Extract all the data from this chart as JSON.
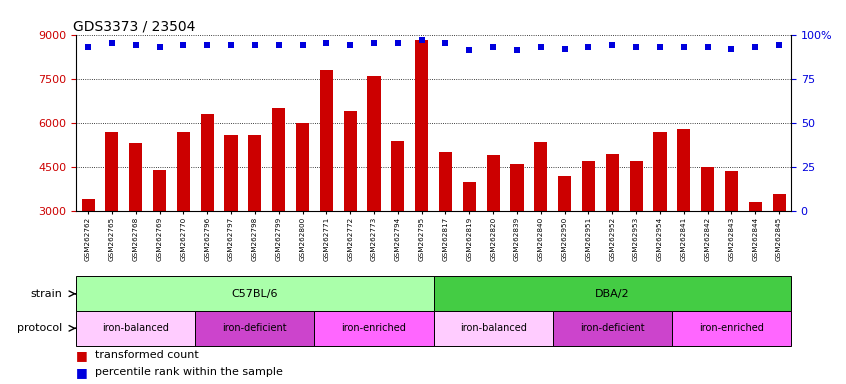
{
  "title": "GDS3373 / 23504",
  "samples": [
    "GSM262762",
    "GSM262765",
    "GSM262768",
    "GSM262769",
    "GSM262770",
    "GSM262796",
    "GSM262797",
    "GSM262798",
    "GSM262799",
    "GSM262800",
    "GSM262771",
    "GSM262772",
    "GSM262773",
    "GSM262794",
    "GSM262795",
    "GSM262817",
    "GSM262819",
    "GSM262820",
    "GSM262839",
    "GSM262840",
    "GSM262950",
    "GSM262951",
    "GSM262952",
    "GSM262953",
    "GSM262954",
    "GSM262841",
    "GSM262842",
    "GSM262843",
    "GSM262844",
    "GSM262845"
  ],
  "bar_values": [
    3400,
    5700,
    5300,
    4400,
    5700,
    6300,
    5600,
    5600,
    6500,
    6000,
    7800,
    6400,
    7600,
    5400,
    8800,
    5000,
    4000,
    4900,
    4600,
    5350,
    4200,
    4700,
    4950,
    4700,
    5700,
    5800,
    4500,
    4350,
    3300,
    3600
  ],
  "percentile_values": [
    93,
    95,
    94,
    93,
    94,
    94,
    94,
    94,
    94,
    94,
    95,
    94,
    95,
    95,
    97,
    95,
    91,
    93,
    91,
    93,
    92,
    93,
    94,
    93,
    93,
    93,
    93,
    92,
    93,
    94
  ],
  "ylim_left": [
    3000,
    9000
  ],
  "ylim_right": [
    0,
    100
  ],
  "yticks_left": [
    3000,
    4500,
    6000,
    7500,
    9000
  ],
  "yticks_right": [
    0,
    25,
    50,
    75,
    100
  ],
  "bar_color": "#cc0000",
  "dot_color": "#0000dd",
  "strain_groups": [
    {
      "label": "C57BL/6",
      "start": 0,
      "end": 15,
      "color": "#aaffaa"
    },
    {
      "label": "DBA/2",
      "start": 15,
      "end": 30,
      "color": "#44cc44"
    }
  ],
  "protocol_groups": [
    {
      "label": "iron-balanced",
      "start": 0,
      "end": 5,
      "color": "#ffccff"
    },
    {
      "label": "iron-deficient",
      "start": 5,
      "end": 10,
      "color": "#cc44cc"
    },
    {
      "label": "iron-enriched",
      "start": 10,
      "end": 15,
      "color": "#ff66ff"
    },
    {
      "label": "iron-balanced",
      "start": 15,
      "end": 20,
      "color": "#ffccff"
    },
    {
      "label": "iron-deficient",
      "start": 20,
      "end": 25,
      "color": "#cc44cc"
    },
    {
      "label": "iron-enriched",
      "start": 25,
      "end": 30,
      "color": "#ff66ff"
    }
  ],
  "legend_items": [
    {
      "label": "transformed count",
      "color": "#cc0000"
    },
    {
      "label": "percentile rank within the sample",
      "color": "#0000dd"
    }
  ],
  "background_color": "#ffffff",
  "tick_label_color_left": "#cc0000",
  "tick_label_color_right": "#0000dd",
  "title_fontsize": 10,
  "bar_width": 0.55
}
